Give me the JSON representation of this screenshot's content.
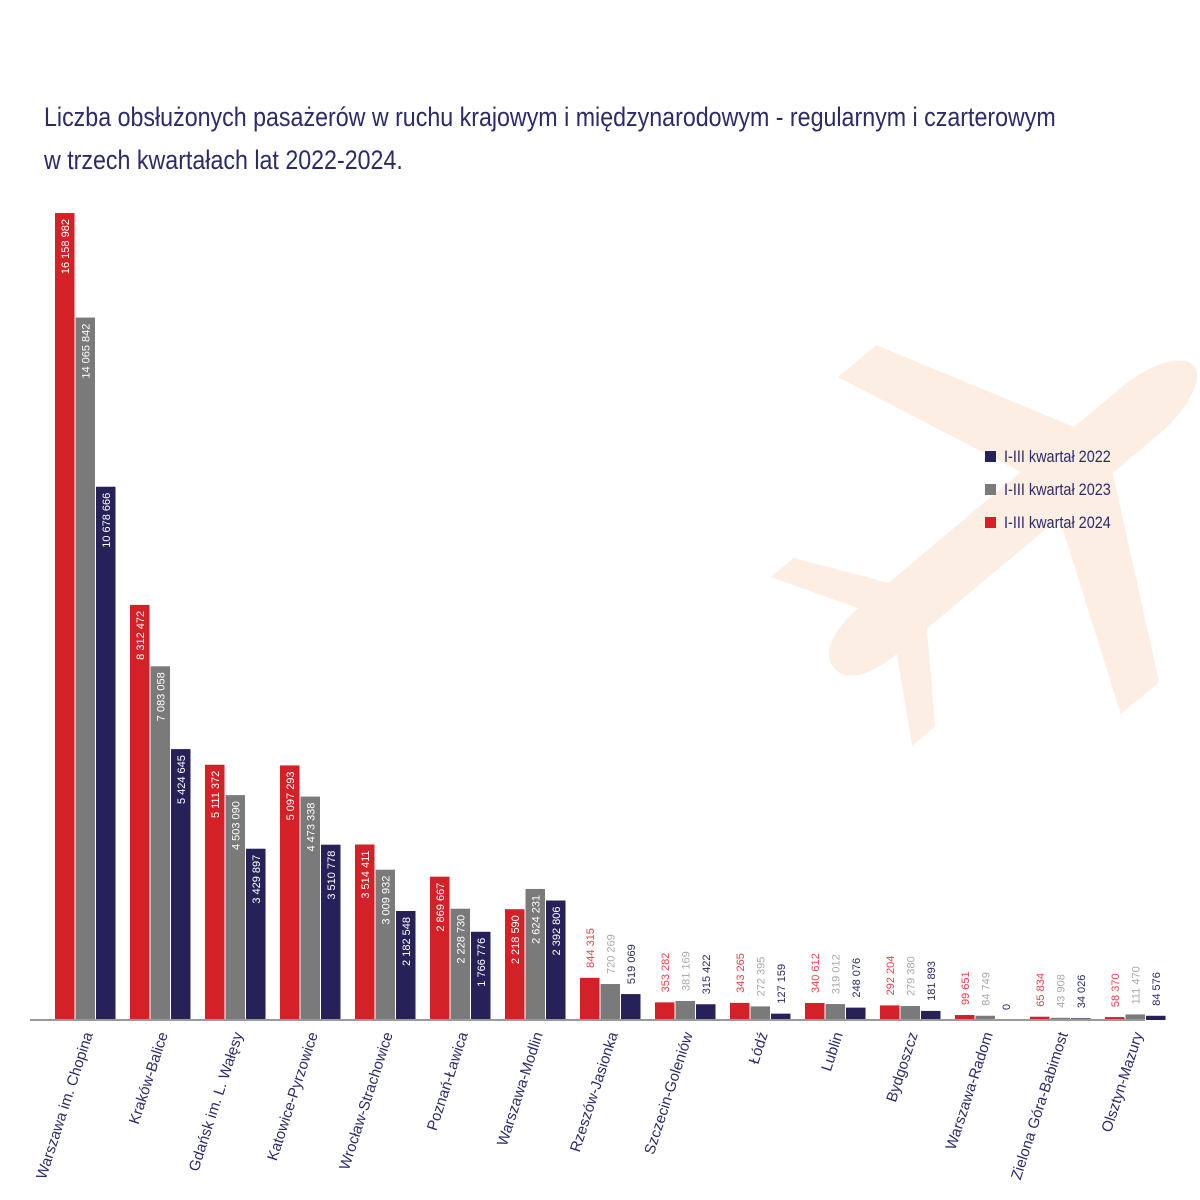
{
  "chart_data": {
    "type": "bar",
    "title": "Liczba obsłużonych pasażerów w ruchu krajowym i międzynarodowym - regularnym i czarterowym w trzech kwartałach lat 2022-2024.",
    "title_lines": [
      "Liczba obsłużonych pasażerów w ruchu krajowym i międzynarodowym - regularnym i czarterowym",
      "w trzech kwartałach lat 2022-2024."
    ],
    "xlabel": "",
    "ylabel": "",
    "ylim": [
      0,
      16200000
    ],
    "grid": false,
    "legend_position": "right",
    "categories": [
      "Warszawa im. Chopina",
      "Kraków-Balice",
      "Gdańsk im. L. Wałęsy",
      "Katowice-Pyrzowice",
      "Wrocław-Strachowice",
      "Poznań-Ławica",
      "Warszawa-Modlin",
      "Rzeszów-Jasionka",
      "Szczecin-Goleniów",
      "Łódź",
      "Lublin",
      "Bydgoszcz",
      "Warszawa-Radom",
      "Zielona Góra-Babimost",
      "Olsztyn-Mazury"
    ],
    "series": [
      {
        "name": "I-III kwartał 2024",
        "color": "#d42027",
        "values": [
          16158982,
          8312472,
          5111372,
          5097293,
          3514411,
          2869667,
          2218590,
          844315,
          353282,
          343265,
          340612,
          292204,
          99651,
          65834,
          58370
        ],
        "labels": [
          "16 158 982",
          "8 312 472",
          "5 111 372",
          "5 097 293",
          "3 514 411",
          "2 869 667",
          "2 218 590",
          "844 315",
          "353 282",
          "343 265",
          "340 612",
          "292 204",
          "99 651",
          "65 834",
          "58 370"
        ]
      },
      {
        "name": "I-III kwartał 2023",
        "color": "#7a7a7a",
        "values": [
          14065842,
          7083058,
          4503090,
          4473338,
          3009932,
          2228730,
          2624231,
          720269,
          381169,
          272395,
          319012,
          279380,
          84749,
          43908,
          111470
        ],
        "labels": [
          "14 065 842",
          "7 083 058",
          "4 503 090",
          "4 473 338",
          "3 009 932",
          "2 228 730",
          "2 624 231",
          "720 269",
          "381 169",
          "272 395",
          "319 012",
          "279 380",
          "84 749",
          "43 908",
          "111 470"
        ]
      },
      {
        "name": "I-III kwartał 2022",
        "color": "#27215a",
        "values": [
          10678666,
          5424645,
          3429897,
          3510778,
          2182548,
          1766776,
          2392806,
          519069,
          315422,
          127159,
          248076,
          181893,
          0,
          34026,
          84576
        ],
        "labels": [
          "10 678 666",
          "5 424 645",
          "3 429 897",
          "3 510 778",
          "2 182 548",
          "1 766 776",
          "2 392 806",
          "519 069",
          "315 422",
          "127 159",
          "248 076",
          "181 893",
          "0",
          "34 026",
          "84 576"
        ]
      }
    ],
    "outside_label_colors": [
      "#e8434a",
      "#a9a9a9",
      "#2b2a6b"
    ]
  },
  "legend": {
    "items": [
      {
        "label": "I-III kwartał 2022",
        "color": "#27215a"
      },
      {
        "label": "I-III kwartał 2023",
        "color": "#7a7a7a"
      },
      {
        "label": "I-III kwartał 2024",
        "color": "#d42027"
      }
    ]
  }
}
